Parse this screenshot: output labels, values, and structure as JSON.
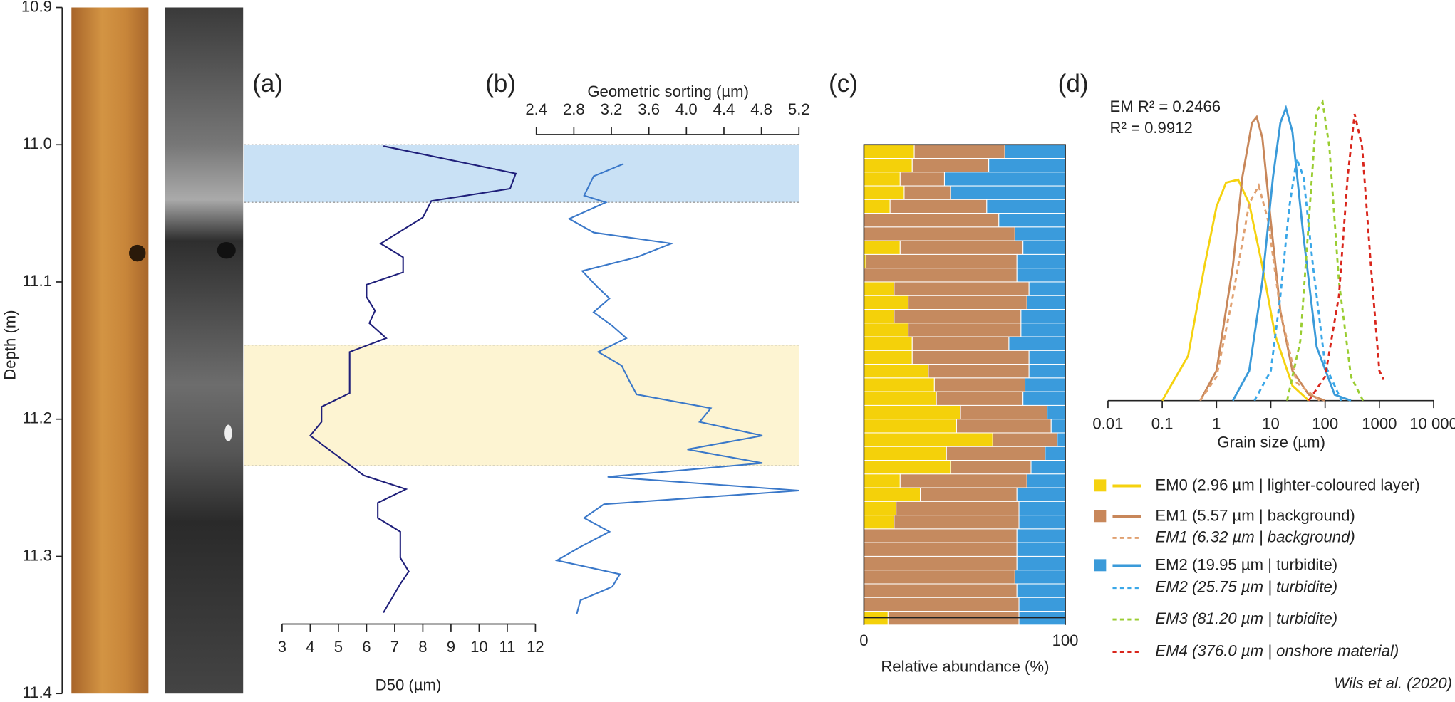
{
  "chart_data": [
    {
      "type": "axis",
      "label": "Depth (m)",
      "ylim": [
        10.9,
        11.4
      ],
      "yticks": [
        10.9,
        {
          "value": 11.0,
          "label": "11.0"
        },
        11.1,
        11.2,
        11.3,
        11.4
      ],
      "shaded_intervals": [
        {
          "range": [
            11.0,
            11.042
          ],
          "color": "#c9e1f5"
        },
        {
          "range": [
            11.146,
            11.234
          ],
          "color": "#fdf4d2"
        }
      ]
    },
    {
      "type": "line",
      "panel": "(a)",
      "xlabel": "D50 (µm)",
      "xlim": [
        3,
        12
      ],
      "xticks": [
        3,
        4,
        5,
        6,
        7,
        8,
        9,
        10,
        11,
        12
      ],
      "color": "#1f1f7a",
      "y": [
        11.001,
        11.021,
        11.032,
        11.041,
        11.053,
        11.072,
        11.082,
        11.093,
        11.102,
        11.111,
        11.121,
        11.13,
        11.141,
        11.151,
        11.161,
        11.181,
        11.191,
        11.202,
        11.212,
        11.241,
        11.251,
        11.261,
        11.272,
        11.282,
        11.301,
        11.311,
        11.32,
        11.341
      ],
      "values": [
        6.6,
        11.3,
        11.1,
        8.3,
        8.0,
        6.5,
        7.3,
        7.3,
        6.0,
        6.0,
        6.3,
        6.1,
        6.7,
        5.4,
        5.4,
        5.4,
        4.4,
        4.4,
        4.0,
        5.9,
        7.4,
        6.4,
        6.4,
        7.2,
        7.2,
        7.5,
        7.2,
        6.6
      ]
    },
    {
      "type": "line",
      "panel": "(b)",
      "xlabel": "Geometric sorting (µm)",
      "xlim": [
        2.4,
        5.2
      ],
      "xticks": [
        2.4,
        2.8,
        3.2,
        3.6,
        {
          "value": 4.0,
          "label": "4.0"
        },
        4.4,
        4.8,
        5.2
      ],
      "color": "#3a78c9",
      "axis_position": "top",
      "y": [
        11.014,
        11.023,
        11.037,
        11.042,
        11.054,
        11.064,
        11.072,
        11.082,
        11.092,
        11.103,
        11.112,
        11.122,
        11.132,
        11.141,
        11.151,
        11.161,
        11.172,
        11.182,
        11.192,
        11.202,
        11.212,
        11.222,
        11.232,
        11.242,
        11.252,
        11.262,
        11.272,
        11.282,
        11.293,
        11.303,
        11.313,
        11.322,
        11.332,
        11.342
      ],
      "values": [
        3.33,
        3.01,
        2.91,
        3.14,
        2.75,
        3.01,
        3.84,
        3.47,
        2.89,
        3.04,
        3.18,
        3.01,
        3.21,
        3.36,
        3.06,
        3.31,
        3.39,
        3.47,
        4.26,
        4.14,
        4.81,
        4.01,
        4.81,
        3.16,
        5.2,
        3.12,
        2.91,
        3.18,
        2.87,
        2.62,
        3.29,
        3.21,
        2.87,
        2.83
      ]
    },
    {
      "type": "bar",
      "orientation": "horizontal",
      "stacked": true,
      "panel": "(c)",
      "xlabel": "Relative abundance (%)",
      "xlim": [
        0,
        100
      ],
      "xticks": [
        0,
        100
      ],
      "y": [
        11.005,
        11.015,
        11.025,
        11.035,
        11.045,
        11.055,
        11.065,
        11.075,
        11.085,
        11.095,
        11.105,
        11.115,
        11.125,
        11.135,
        11.145,
        11.155,
        11.165,
        11.175,
        11.185,
        11.195,
        11.205,
        11.215,
        11.225,
        11.235,
        11.245,
        11.255,
        11.265,
        11.275,
        11.285,
        11.295,
        11.305,
        11.315,
        11.325,
        11.335,
        11.345
      ],
      "series": [
        {
          "color": "#f4d10a",
          "values": [
            25,
            24,
            18,
            20,
            13,
            0,
            0,
            18,
            1,
            0,
            15,
            22,
            15,
            22,
            24,
            24,
            32,
            35,
            36,
            48,
            46,
            64,
            41,
            43,
            18,
            28,
            16,
            15,
            0,
            0,
            0,
            0,
            0,
            0,
            12
          ]
        },
        {
          "color": "#c58a5f",
          "values": [
            45,
            38,
            22,
            23,
            48,
            67,
            75,
            61,
            75,
            76,
            67,
            59,
            63,
            56,
            48,
            58,
            50,
            45,
            43,
            43,
            47,
            32,
            49,
            40,
            63,
            48,
            61,
            62,
            76,
            76,
            76,
            75,
            76,
            77,
            65
          ]
        },
        {
          "color": "#3a9bdc",
          "values": [
            30,
            38,
            60,
            57,
            39,
            33,
            25,
            21,
            24,
            24,
            18,
            19,
            22,
            22,
            28,
            18,
            18,
            20,
            21,
            9,
            7,
            4,
            10,
            17,
            19,
            24,
            23,
            23,
            24,
            24,
            24,
            25,
            24,
            23,
            23
          ]
        }
      ]
    },
    {
      "type": "line",
      "panel": "(d)",
      "xlabel": "Grain size (µm)",
      "xscale": "log",
      "xlim": [
        0.01,
        10000
      ],
      "xticks": [
        0.01,
        0.1,
        1,
        10,
        100,
        1000,
        {
          "value": 10000,
          "label": "10 000"
        }
      ],
      "ylim": [
        0,
        1
      ],
      "annotations": [
        "EM R² = 0.2466",
        "R² = 0.9912"
      ],
      "series": [
        {
          "name": "EM0 (2.96 µm | lighter-coloured layer)",
          "color": "#f5d20f",
          "dash": false,
          "swatch": true,
          "x": [
            0.1,
            0.3,
            0.6,
            1,
            1.5,
            2.5,
            4,
            7,
            12,
            25,
            50
          ],
          "values": [
            0,
            0.15,
            0.45,
            0.65,
            0.73,
            0.74,
            0.66,
            0.45,
            0.22,
            0.05,
            0
          ]
        },
        {
          "name": "EM1 (5.57 µm | background)",
          "color": "#c8875a",
          "dash": false,
          "swatch": true,
          "x": [
            0.5,
            1,
            2,
            3,
            4.5,
            5.5,
            7,
            10,
            15,
            25,
            50,
            100
          ],
          "values": [
            0,
            0.1,
            0.45,
            0.75,
            0.93,
            0.95,
            0.88,
            0.6,
            0.3,
            0.1,
            0.02,
            0
          ]
        },
        {
          "name": "EM1 (6.32 µm | background)",
          "color": "#e0a070",
          "dash": true,
          "swatch": false,
          "x": [
            0.5,
            1,
            2,
            4,
            6,
            9,
            15,
            30,
            80
          ],
          "values": [
            0,
            0.08,
            0.35,
            0.66,
            0.72,
            0.6,
            0.3,
            0.06,
            0
          ]
        },
        {
          "name": "EM2 (19.95 µm | turbidite)",
          "color": "#3a9ad9",
          "dash": false,
          "swatch": true,
          "x": [
            2,
            4,
            7,
            11,
            15,
            19,
            25,
            40,
            70,
            150,
            300
          ],
          "values": [
            0,
            0.1,
            0.4,
            0.75,
            0.93,
            0.98,
            0.9,
            0.55,
            0.18,
            0.02,
            0
          ]
        },
        {
          "name": "EM2 (25.75 µm | turbidite)",
          "color": "#3aa7e8",
          "dash": true,
          "swatch": false,
          "x": [
            5,
            10,
            15,
            22,
            30,
            40,
            60,
            100,
            200
          ],
          "values": [
            0,
            0.1,
            0.35,
            0.65,
            0.81,
            0.75,
            0.45,
            0.12,
            0
          ]
        },
        {
          "name": "EM3 (81.20 µm | turbidite)",
          "color": "#9acd32",
          "dash": true,
          "swatch": false,
          "x": [
            20,
            35,
            50,
            70,
            90,
            120,
            180,
            300,
            500
          ],
          "values": [
            0,
            0.2,
            0.6,
            0.97,
            1.0,
            0.85,
            0.4,
            0.08,
            0
          ]
        },
        {
          "name": "EM4 (376.0 µm | onshore material)",
          "color": "#d9261c",
          "dash": true,
          "swatch": false,
          "x": [
            50,
            100,
            180,
            260,
            350,
            480,
            700,
            1000,
            1200
          ],
          "values": [
            0,
            0.08,
            0.35,
            0.75,
            0.96,
            0.85,
            0.45,
            0.1,
            0.07
          ]
        }
      ]
    }
  ],
  "credit": "Wils et al. (2020)"
}
